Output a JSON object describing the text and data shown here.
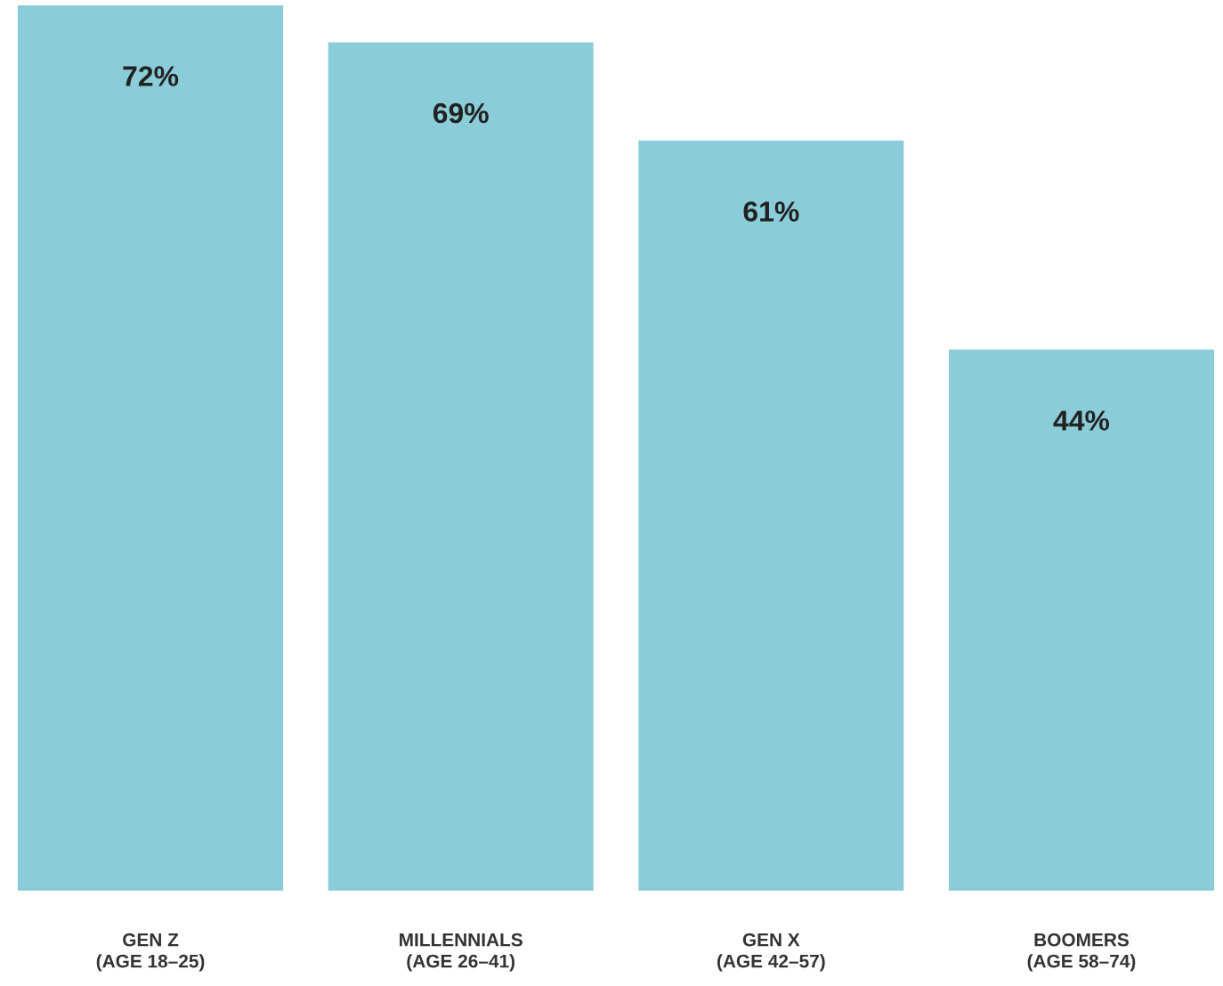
{
  "chart_data": {
    "type": "bar",
    "categories": [
      "GEN Z\n(AGE 18–25)",
      "MILLENNIALS\n(AGE 26–41)",
      "GEN X\n(AGE 42–57)",
      "BOOMERS\n(AGE 58–74)"
    ],
    "values": [
      72,
      69,
      61,
      44
    ],
    "value_labels": [
      "72%",
      "69%",
      "61%",
      "44%"
    ],
    "color": "#8acdd8",
    "ylim": [
      0,
      72
    ],
    "tick_labels": "x",
    "grid": false,
    "legend": false
  }
}
